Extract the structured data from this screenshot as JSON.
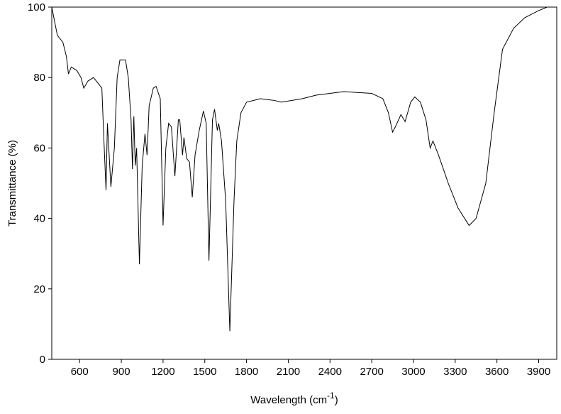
{
  "chart_data": {
    "type": "line",
    "y_label": "Transmittance (%)",
    "x_label": {
      "text": "Wavelength (cm",
      "sup": "-1",
      "close": ")"
    },
    "xlim": [
      400,
      4030
    ],
    "ylim": [
      0,
      100
    ],
    "xticks": [
      600,
      900,
      1200,
      1500,
      1800,
      2100,
      2400,
      2700,
      3000,
      3300,
      3600,
      3900
    ],
    "yticks": [
      0,
      20,
      40,
      60,
      80,
      100
    ],
    "grid": false,
    "series": [
      {
        "color": "#000000",
        "x": [
          400,
          420,
          440,
          480,
          505,
          520,
          540,
          580,
          610,
          630,
          660,
          700,
          740,
          760,
          775,
          790,
          800,
          825,
          850,
          870,
          890,
          930,
          950,
          970,
          980,
          990,
          1000,
          1010,
          1030,
          1050,
          1070,
          1085,
          1100,
          1130,
          1150,
          1180,
          1200,
          1220,
          1240,
          1260,
          1285,
          1310,
          1320,
          1340,
          1350,
          1370,
          1390,
          1410,
          1430,
          1460,
          1490,
          1510,
          1530,
          1555,
          1570,
          1590,
          1600,
          1620,
          1650,
          1680,
          1710,
          1730,
          1760,
          1800,
          1900,
          2000,
          2050,
          2200,
          2300,
          2500,
          2700,
          2780,
          2820,
          2850,
          2870,
          2910,
          2940,
          2980,
          3010,
          3050,
          3090,
          3120,
          3140,
          3180,
          3250,
          3320,
          3400,
          3450,
          3520,
          3580,
          3640,
          3720,
          3800,
          3900,
          3960
        ],
        "values": [
          100,
          96,
          92,
          90,
          86,
          81,
          83,
          82,
          80,
          77,
          79,
          80,
          78,
          77,
          62,
          48,
          67,
          49,
          60,
          80,
          85,
          85,
          80,
          68,
          54,
          69,
          55,
          60,
          27,
          55,
          64,
          58,
          72,
          77,
          77.5,
          74,
          38,
          60,
          67,
          66,
          52,
          68,
          68,
          58,
          63,
          57,
          56,
          46,
          58,
          65,
          70.5,
          67,
          28,
          68,
          71,
          65,
          67,
          62,
          45,
          8,
          45,
          62,
          70,
          73,
          74,
          73.5,
          73,
          74,
          75,
          76,
          75.5,
          74,
          70,
          64.5,
          66,
          69.5,
          67.5,
          73,
          74.5,
          73,
          68,
          60,
          62,
          58,
          50,
          43,
          38,
          40,
          50,
          70,
          88,
          94,
          97,
          99,
          100
        ]
      }
    ]
  }
}
